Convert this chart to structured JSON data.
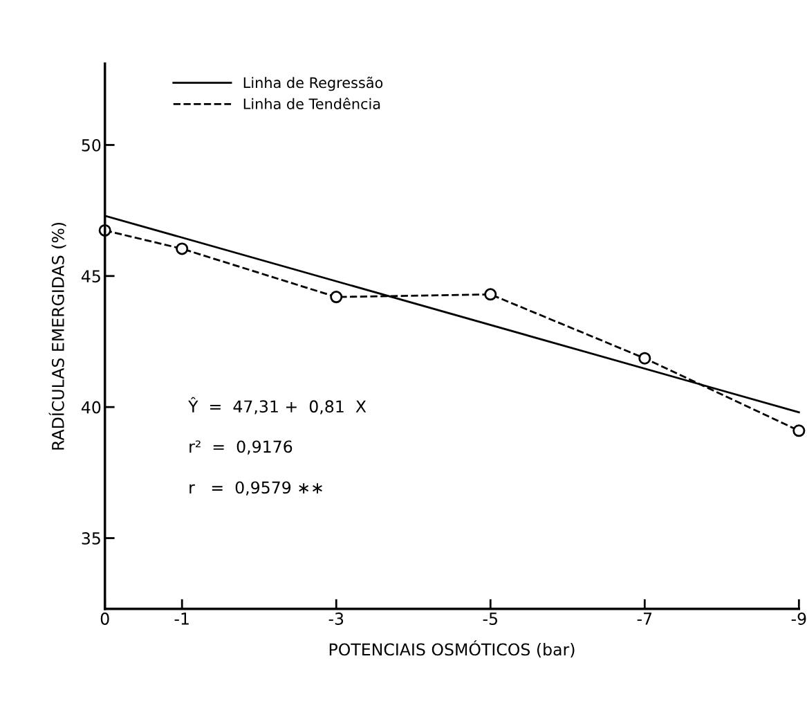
{
  "chart_data": {
    "type": "line",
    "xlabel": "POTENCIAIS OSMÓTICOS (bar)",
    "ylabel": "RADÍCULAS EMERGIDAS (%)",
    "xlim": [
      0,
      -9
    ],
    "xticks": [
      0,
      -1,
      -3,
      -5,
      -7,
      -9
    ],
    "ylim": [
      32.3,
      53.1
    ],
    "yticks": [
      35,
      40,
      45,
      50
    ],
    "grid": false,
    "legend": "top left",
    "series": [
      {
        "name": "Linha de Regressão",
        "color": "#000000",
        "x": [
          0,
          -9
        ],
        "values": [
          47.3,
          39.8
        ],
        "line_style": "solid",
        "marker": "none"
      },
      {
        "name": "Linha de Tendência",
        "color": "#000000",
        "x": [
          0,
          -1,
          -3,
          -5,
          -7,
          -9
        ],
        "values": [
          46.74,
          46.04,
          44.2,
          44.3,
          41.86,
          39.1
        ],
        "line_style": "dashed",
        "marker": "circle"
      }
    ],
    "annotations": [
      "Ŷ  =  47,31 +  0,81  X",
      "r²  =  0,9176",
      "r   =  0,9579 ∗∗"
    ]
  }
}
